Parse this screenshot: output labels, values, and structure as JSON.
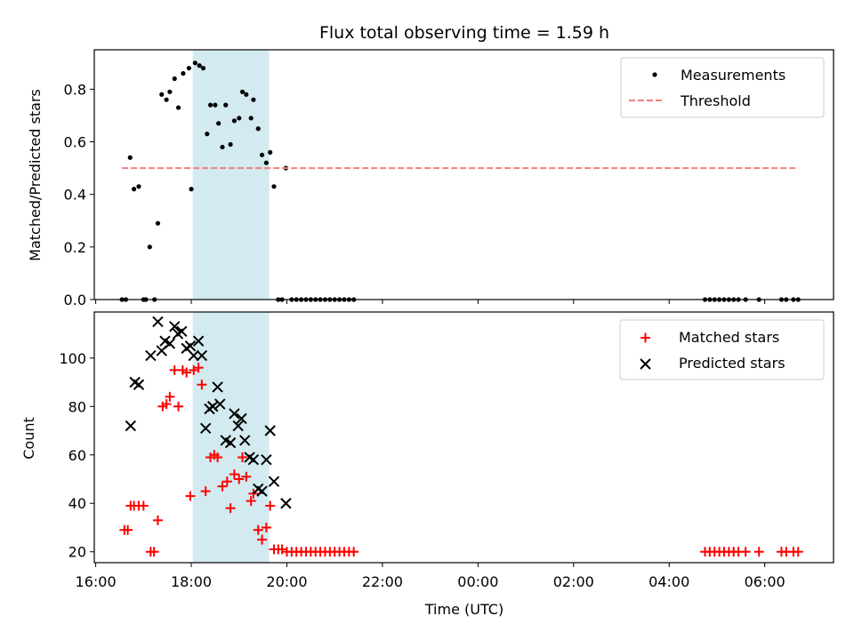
{
  "chart_data": [
    {
      "type": "scatter",
      "title": "Flux total observing time = 1.59 h",
      "xlabel": "",
      "ylabel": "Matched/Predicted stars",
      "ylim": [
        0,
        0.95
      ],
      "yticks": [
        0,
        0.2,
        0.4,
        0.6,
        0.8
      ],
      "ytick_labels": [
        "0.0",
        "0.2",
        "0.4",
        "0.6",
        "0.8"
      ],
      "xlim": [
        15.97,
        31.44
      ],
      "highlight_span": [
        18.03,
        19.63
      ],
      "highlight_color": "#d3eaf0",
      "legend_position": "top-right",
      "series": [
        {
          "name": "Measurements",
          "kind": "point",
          "color": "#000000",
          "points": [
            [
              16.55,
              0.0
            ],
            [
              16.63,
              0.0
            ],
            [
              16.72,
              0.54
            ],
            [
              16.8,
              0.42
            ],
            [
              16.9,
              0.43
            ],
            [
              17.0,
              0.0
            ],
            [
              17.05,
              0.0
            ],
            [
              17.13,
              0.2
            ],
            [
              17.23,
              0.0
            ],
            [
              17.3,
              0.29
            ],
            [
              17.38,
              0.78
            ],
            [
              17.48,
              0.76
            ],
            [
              17.55,
              0.79
            ],
            [
              17.65,
              0.84
            ],
            [
              17.73,
              0.73
            ],
            [
              17.83,
              0.86
            ],
            [
              17.95,
              0.88
            ],
            [
              18.0,
              0.42
            ],
            [
              18.08,
              0.9
            ],
            [
              18.17,
              0.89
            ],
            [
              18.25,
              0.88
            ],
            [
              18.33,
              0.63
            ],
            [
              18.4,
              0.74
            ],
            [
              18.5,
              0.74
            ],
            [
              18.57,
              0.67
            ],
            [
              18.65,
              0.58
            ],
            [
              18.72,
              0.74
            ],
            [
              18.82,
              0.59
            ],
            [
              18.9,
              0.68
            ],
            [
              19.0,
              0.69
            ],
            [
              19.07,
              0.79
            ],
            [
              19.15,
              0.78
            ],
            [
              19.25,
              0.69
            ],
            [
              19.3,
              0.76
            ],
            [
              19.4,
              0.65
            ],
            [
              19.48,
              0.55
            ],
            [
              19.57,
              0.52
            ],
            [
              19.65,
              0.56
            ],
            [
              19.73,
              0.43
            ],
            [
              19.82,
              0.0
            ],
            [
              19.9,
              0.0
            ],
            [
              19.98,
              0.5
            ],
            [
              20.1,
              0.0
            ],
            [
              20.2,
              0.0
            ],
            [
              20.3,
              0.0
            ],
            [
              20.4,
              0.0
            ],
            [
              20.5,
              0.0
            ],
            [
              20.6,
              0.0
            ],
            [
              20.7,
              0.0
            ],
            [
              20.8,
              0.0
            ],
            [
              20.9,
              0.0
            ],
            [
              21.0,
              0.0
            ],
            [
              21.1,
              0.0
            ],
            [
              21.2,
              0.0
            ],
            [
              21.3,
              0.0
            ],
            [
              21.4,
              0.0
            ],
            [
              28.75,
              0.0
            ],
            [
              28.85,
              0.0
            ],
            [
              28.95,
              0.0
            ],
            [
              29.05,
              0.0
            ],
            [
              29.15,
              0.0
            ],
            [
              29.25,
              0.0
            ],
            [
              29.35,
              0.0
            ],
            [
              29.45,
              0.0
            ],
            [
              29.6,
              0.0
            ],
            [
              29.88,
              0.0
            ],
            [
              30.35,
              0.0
            ],
            [
              30.45,
              0.0
            ],
            [
              30.6,
              0.0
            ],
            [
              30.7,
              0.0
            ]
          ]
        },
        {
          "name": "Threshold",
          "kind": "dashed-line",
          "color": "#f08080",
          "points": [
            [
              16.55,
              0.5
            ],
            [
              30.7,
              0.5
            ]
          ]
        }
      ]
    },
    {
      "type": "scatter",
      "title": "",
      "xlabel": "Time (UTC)",
      "ylabel": "Count",
      "ylim": [
        15.5,
        119
      ],
      "yticks": [
        20,
        40,
        60,
        80,
        100
      ],
      "ytick_labels": [
        "20",
        "40",
        "60",
        "80",
        "100"
      ],
      "xlim": [
        15.97,
        31.44
      ],
      "xticks": [
        16,
        18,
        20,
        22,
        24,
        26,
        28,
        30
      ],
      "xtick_labels": [
        "16:00",
        "18:00",
        "20:00",
        "22:00",
        "00:00",
        "02:00",
        "04:00",
        "06:00"
      ],
      "highlight_span": [
        18.03,
        19.63
      ],
      "highlight_color": "#d3eaf0",
      "legend_position": "top-right",
      "series": [
        {
          "name": "Matched stars",
          "kind": "plus",
          "color": "#ff0000",
          "points": [
            [
              16.6,
              29
            ],
            [
              16.67,
              29
            ],
            [
              16.73,
              39
            ],
            [
              16.8,
              39
            ],
            [
              16.9,
              39
            ],
            [
              17.0,
              39
            ],
            [
              17.15,
              20
            ],
            [
              17.22,
              20
            ],
            [
              17.3,
              33
            ],
            [
              17.4,
              80
            ],
            [
              17.48,
              81
            ],
            [
              17.55,
              84
            ],
            [
              17.65,
              95
            ],
            [
              17.73,
              80
            ],
            [
              17.82,
              95
            ],
            [
              17.9,
              94
            ],
            [
              17.98,
              43
            ],
            [
              18.05,
              95
            ],
            [
              18.15,
              96
            ],
            [
              18.22,
              89
            ],
            [
              18.3,
              45
            ],
            [
              18.4,
              59
            ],
            [
              18.48,
              60
            ],
            [
              18.55,
              59
            ],
            [
              18.65,
              47
            ],
            [
              18.75,
              49
            ],
            [
              18.82,
              38
            ],
            [
              18.9,
              52
            ],
            [
              19.0,
              50
            ],
            [
              19.07,
              59
            ],
            [
              19.15,
              51
            ],
            [
              19.25,
              41
            ],
            [
              19.3,
              44
            ],
            [
              19.4,
              29
            ],
            [
              19.48,
              25
            ],
            [
              19.57,
              30
            ],
            [
              19.65,
              39
            ],
            [
              19.73,
              21
            ],
            [
              19.82,
              21
            ],
            [
              19.9,
              21
            ],
            [
              20.0,
              20
            ],
            [
              20.1,
              20
            ],
            [
              20.2,
              20
            ],
            [
              20.3,
              20
            ],
            [
              20.4,
              20
            ],
            [
              20.5,
              20
            ],
            [
              20.6,
              20
            ],
            [
              20.7,
              20
            ],
            [
              20.8,
              20
            ],
            [
              20.9,
              20
            ],
            [
              21.0,
              20
            ],
            [
              21.1,
              20
            ],
            [
              21.2,
              20
            ],
            [
              21.3,
              20
            ],
            [
              21.4,
              20
            ],
            [
              28.75,
              20
            ],
            [
              28.85,
              20
            ],
            [
              28.95,
              20
            ],
            [
              29.05,
              20
            ],
            [
              29.15,
              20
            ],
            [
              29.25,
              20
            ],
            [
              29.35,
              20
            ],
            [
              29.45,
              20
            ],
            [
              29.6,
              20
            ],
            [
              29.88,
              20
            ],
            [
              30.35,
              20
            ],
            [
              30.45,
              20
            ],
            [
              30.6,
              20
            ],
            [
              30.7,
              20
            ]
          ]
        },
        {
          "name": "Predicted stars",
          "kind": "x",
          "color": "#000000",
          "points": [
            [
              16.73,
              72
            ],
            [
              16.82,
              90
            ],
            [
              16.9,
              89
            ],
            [
              17.15,
              101
            ],
            [
              17.3,
              115
            ],
            [
              17.38,
              103
            ],
            [
              17.45,
              107
            ],
            [
              17.55,
              106
            ],
            [
              17.65,
              113
            ],
            [
              17.72,
              110
            ],
            [
              17.8,
              111
            ],
            [
              17.9,
              104
            ],
            [
              17.98,
              105
            ],
            [
              18.05,
              101
            ],
            [
              18.15,
              107
            ],
            [
              18.22,
              101
            ],
            [
              18.3,
              71
            ],
            [
              18.38,
              79
            ],
            [
              18.45,
              80
            ],
            [
              18.55,
              88
            ],
            [
              18.6,
              81
            ],
            [
              18.72,
              66
            ],
            [
              18.82,
              65
            ],
            [
              18.9,
              77
            ],
            [
              18.98,
              72
            ],
            [
              19.05,
              75
            ],
            [
              19.12,
              66
            ],
            [
              19.22,
              59
            ],
            [
              19.3,
              58
            ],
            [
              19.4,
              46
            ],
            [
              19.48,
              45
            ],
            [
              19.57,
              58
            ],
            [
              19.65,
              70
            ],
            [
              19.73,
              49
            ],
            [
              19.98,
              40
            ]
          ]
        }
      ]
    }
  ]
}
